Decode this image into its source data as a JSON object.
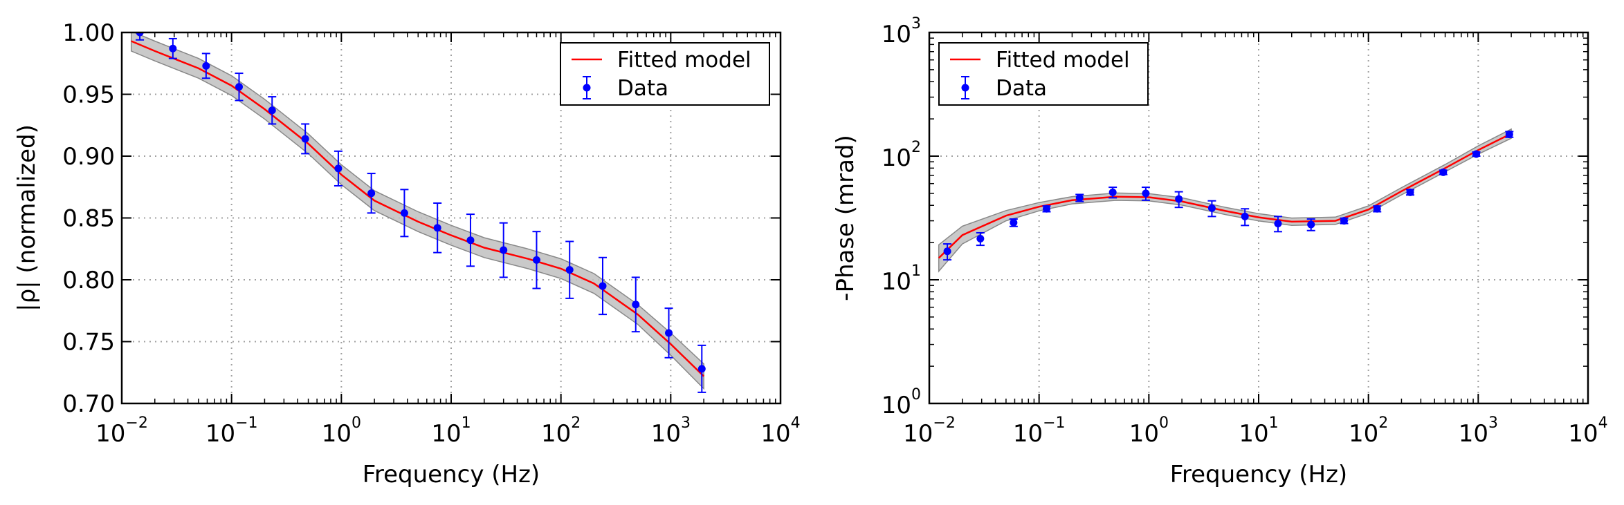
{
  "figure": {
    "panels": [
      {
        "id": "magnitude",
        "xlabel": "Frequency (Hz)",
        "ylabel": "|ρ| (normalized)",
        "legend": {
          "position": "upper-right",
          "entries": [
            "Fitted model",
            "Data"
          ]
        }
      },
      {
        "id": "phase",
        "xlabel": "Frequency (Hz)",
        "ylabel": "-Phase (mrad)",
        "legend": {
          "position": "upper-left",
          "entries": [
            "Fitted model",
            "Data"
          ]
        }
      }
    ]
  },
  "colors": {
    "fit_line": "#ff0000",
    "data_points": "#0000ff",
    "uncertainty_band": "#bfbfbf",
    "grid": "#a0a0a0"
  },
  "chart_data": [
    {
      "type": "line",
      "subtype": "errorbar_with_fit",
      "xscale": "log",
      "yscale": "linear",
      "xlim": [
        0.01,
        10000
      ],
      "ylim": [
        0.7,
        1.0
      ],
      "grid": true,
      "xlabel": "Frequency (Hz)",
      "ylabel": "|ρ| (normalized)",
      "x_tick_labels": [
        {
          "base": "10",
          "exp": "−2"
        },
        {
          "base": "10",
          "exp": "−1"
        },
        {
          "base": "10",
          "exp": "0"
        },
        {
          "base": "10",
          "exp": "1"
        },
        {
          "base": "10",
          "exp": "2"
        },
        {
          "base": "10",
          "exp": "3"
        },
        {
          "base": "10",
          "exp": "4"
        }
      ],
      "y_tick_labels": [
        "0.70",
        "0.75",
        "0.80",
        "0.85",
        "0.90",
        "0.95",
        "1.00"
      ],
      "series": [
        {
          "name": "Data",
          "kind": "errorbar",
          "x": [
            0.0146,
            0.0292,
            0.0586,
            0.117,
            0.234,
            0.469,
            0.938,
            1.875,
            3.75,
            7.5,
            15,
            30,
            60,
            120,
            240,
            480,
            960,
            1920
          ],
          "y": [
            1.0,
            0.987,
            0.973,
            0.956,
            0.937,
            0.914,
            0.89,
            0.87,
            0.854,
            0.842,
            0.832,
            0.824,
            0.816,
            0.808,
            0.795,
            0.78,
            0.757,
            0.728
          ],
          "yerr": [
            0.006,
            0.008,
            0.01,
            0.011,
            0.011,
            0.012,
            0.014,
            0.016,
            0.019,
            0.02,
            0.021,
            0.022,
            0.023,
            0.023,
            0.023,
            0.022,
            0.02,
            0.019
          ]
        },
        {
          "name": "Fitted model",
          "kind": "line",
          "x": [
            0.0122,
            0.02,
            0.05,
            0.1,
            0.2,
            0.5,
            1,
            2,
            5,
            10,
            20,
            50,
            100,
            200,
            500,
            1000,
            2000
          ],
          "y": [
            0.993,
            0.985,
            0.971,
            0.957,
            0.938,
            0.91,
            0.885,
            0.864,
            0.847,
            0.836,
            0.826,
            0.817,
            0.809,
            0.797,
            0.772,
            0.748,
            0.722
          ],
          "band_halfwidth": [
            0.008,
            0.008,
            0.008,
            0.008,
            0.008,
            0.008,
            0.008,
            0.008,
            0.008,
            0.008,
            0.008,
            0.008,
            0.008,
            0.008,
            0.008,
            0.009,
            0.01
          ]
        }
      ]
    },
    {
      "type": "line",
      "subtype": "errorbar_with_fit",
      "xscale": "log",
      "yscale": "log",
      "xlim": [
        0.01,
        10000
      ],
      "ylim": [
        1,
        1000
      ],
      "grid": true,
      "xlabel": "Frequency (Hz)",
      "ylabel": "-Phase (mrad)",
      "x_tick_labels": [
        {
          "base": "10",
          "exp": "−2"
        },
        {
          "base": "10",
          "exp": "−1"
        },
        {
          "base": "10",
          "exp": "0"
        },
        {
          "base": "10",
          "exp": "1"
        },
        {
          "base": "10",
          "exp": "2"
        },
        {
          "base": "10",
          "exp": "3"
        },
        {
          "base": "10",
          "exp": "4"
        }
      ],
      "y_tick_labels": [
        {
          "base": "10",
          "exp": "0"
        },
        {
          "base": "10",
          "exp": "1"
        },
        {
          "base": "10",
          "exp": "2"
        },
        {
          "base": "10",
          "exp": "3"
        }
      ],
      "series": [
        {
          "name": "Data",
          "kind": "errorbar",
          "x": [
            0.0146,
            0.0292,
            0.0586,
            0.117,
            0.234,
            0.469,
            0.938,
            1.875,
            3.75,
            7.5,
            15,
            30,
            60,
            120,
            240,
            480,
            960,
            1920
          ],
          "y": [
            17,
            21.5,
            29,
            37.5,
            46,
            51,
            50,
            45,
            38,
            32.5,
            28.5,
            28,
            30,
            37.5,
            51,
            74,
            104,
            150
          ],
          "yerr": [
            2.5,
            2.5,
            2,
            2,
            3,
            5,
            6,
            6.5,
            5.5,
            5,
            4,
            3,
            1.5,
            2,
            2.5,
            3,
            4,
            8
          ]
        },
        {
          "name": "Fitted model",
          "kind": "line",
          "x": [
            0.0122,
            0.02,
            0.05,
            0.1,
            0.2,
            0.5,
            1,
            2,
            5,
            10,
            20,
            50,
            100,
            200,
            500,
            1000,
            2000
          ],
          "y": [
            15,
            23,
            33,
            39,
            44,
            47,
            46.5,
            43,
            36,
            32,
            29.5,
            30,
            37,
            52,
            80,
            112,
            152
          ],
          "band_ratio": [
            1.28,
            1.18,
            1.1,
            1.08,
            1.07,
            1.07,
            1.07,
            1.07,
            1.07,
            1.07,
            1.07,
            1.07,
            1.07,
            1.07,
            1.07,
            1.08,
            1.09
          ]
        }
      ]
    }
  ]
}
